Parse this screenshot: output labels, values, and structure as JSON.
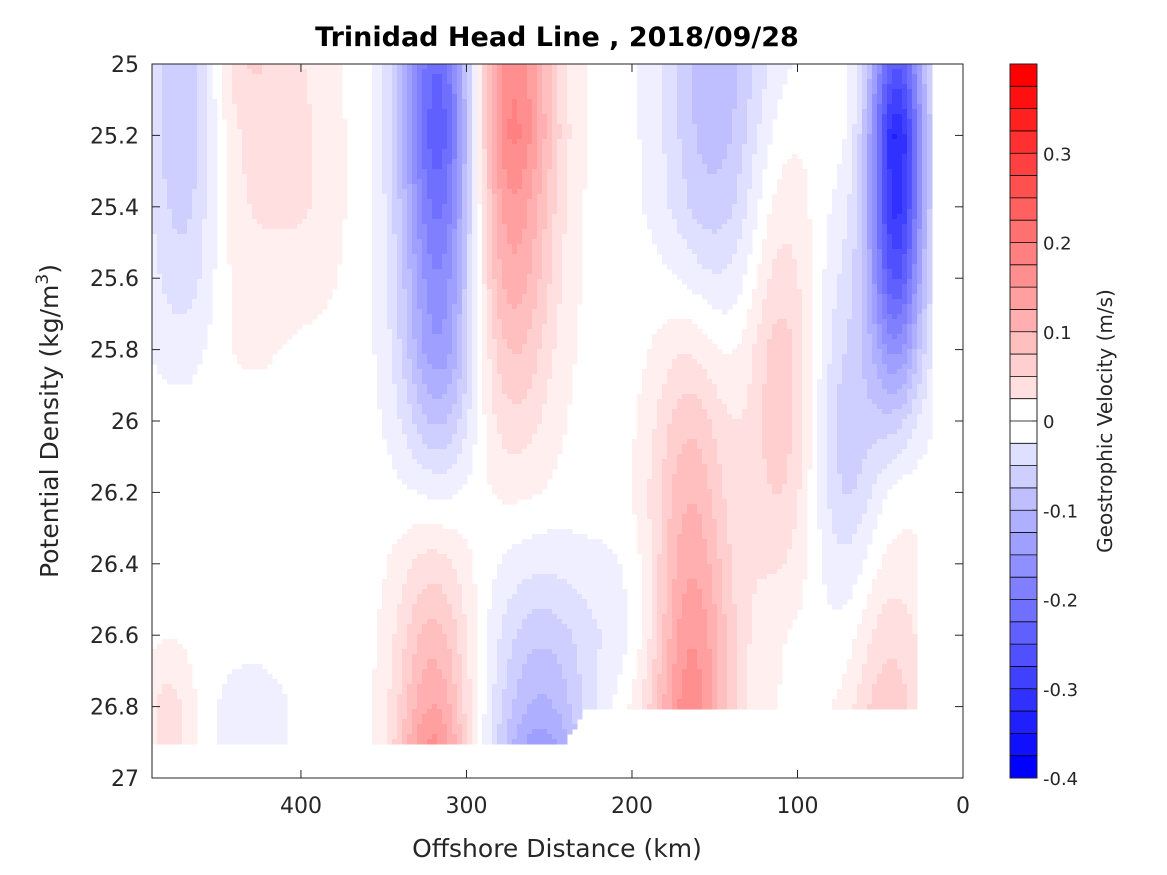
{
  "chart_data": {
    "type": "contour",
    "title": "Trinidad Head Line , 2018/09/28",
    "xlabel": "Offshore Distance (km)",
    "ylabel_main": "Potential Density (kg/m",
    "ylabel_sup": "3",
    "ylabel_close": ")",
    "colorbar_label": "Geostrophic Velocity (m/s)",
    "x_ticks": [
      "400",
      "300",
      "200",
      "100",
      "0"
    ],
    "y_ticks": [
      "25",
      "25.2",
      "25.4",
      "25.6",
      "25.8",
      "26",
      "26.2",
      "26.4",
      "26.6",
      "26.8",
      "27"
    ],
    "colorbar_ticks": [
      "0.3",
      "0.2",
      "0.1",
      "0",
      "-0.1",
      "-0.2",
      "-0.3",
      "-0.4"
    ],
    "xlim": [
      490,
      0
    ],
    "x_reversed": true,
    "ylim": [
      25,
      27
    ],
    "y_reversed": true,
    "clim": [
      -0.4,
      0.4
    ],
    "colormap": "blue-white-red",
    "negative_color": "#0000ff",
    "positive_color": "#ff0000",
    "y_levels": [
      25.0,
      25.2,
      25.4,
      25.6,
      25.8,
      26.0,
      26.2,
      26.4,
      26.6,
      26.8,
      26.9
    ],
    "features": [
      {
        "x": 470,
        "width": 30,
        "profile": [
          -0.1,
          -0.1,
          -0.08,
          -0.06,
          -0.03,
          0,
          0,
          0,
          0,
          0,
          0
        ]
      },
      {
        "x": 435,
        "width": 40,
        "profile": [
          0.07,
          0.05,
          0.04,
          0.03,
          0.02,
          0,
          0,
          0,
          0,
          0,
          0
        ]
      },
      {
        "x": 395,
        "width": 30,
        "profile": [
          0.02,
          0.03,
          0.03,
          0.02,
          0,
          0,
          0,
          0,
          0,
          0,
          0
        ]
      },
      {
        "x": 480,
        "width": 20,
        "profile": [
          0,
          0,
          0,
          0,
          0,
          0,
          0,
          0,
          0.01,
          0.05,
          0.05
        ]
      },
      {
        "x": 430,
        "width": 30,
        "profile": [
          0,
          0,
          0,
          0,
          0,
          0,
          0,
          0,
          0,
          -0.03,
          -0.03
        ]
      },
      {
        "x": 315,
        "width": 32,
        "profile": [
          -0.26,
          -0.28,
          -0.24,
          -0.2,
          -0.17,
          -0.1,
          -0.03,
          0,
          0,
          0,
          0
        ]
      },
      {
        "x": 275,
        "width": 36,
        "profile": [
          0.2,
          0.21,
          0.17,
          0.14,
          0.1,
          0.06,
          0.02,
          0,
          0,
          0,
          0
        ]
      },
      {
        "x": 320,
        "width": 30,
        "profile": [
          0,
          0,
          0,
          0,
          0,
          0,
          0.01,
          0.05,
          0.1,
          0.14,
          0.17
        ]
      },
      {
        "x": 255,
        "width": 40,
        "profile": [
          0,
          0,
          0,
          0,
          0,
          0,
          0,
          -0.03,
          -0.08,
          -0.12,
          -0.15
        ]
      },
      {
        "x": 200,
        "width": 40,
        "profile": [
          0,
          0,
          0,
          0,
          0,
          0,
          0,
          -0.02,
          -0.03,
          0,
          0
        ]
      },
      {
        "x": 150,
        "width": 40,
        "profile": [
          -0.11,
          -0.1,
          -0.08,
          -0.05,
          -0.02,
          0,
          0,
          0,
          0,
          0,
          0
        ]
      },
      {
        "x": 165,
        "width": 30,
        "profile": [
          0,
          0,
          0,
          0.02,
          0.05,
          0.08,
          0.1,
          0.12,
          0.14,
          0.16,
          0
        ]
      },
      {
        "x": 110,
        "width": 28,
        "profile": [
          0,
          0.02,
          0.04,
          0.06,
          0.08,
          0.08,
          0.06,
          0.03,
          0,
          0,
          0
        ]
      },
      {
        "x": 70,
        "width": 28,
        "profile": [
          0,
          0,
          -0.02,
          -0.04,
          -0.06,
          -0.08,
          -0.07,
          -0.04,
          -0.02,
          0,
          0
        ]
      },
      {
        "x": 40,
        "width": 22,
        "profile": [
          -0.26,
          -0.34,
          -0.32,
          -0.26,
          -0.16,
          -0.06,
          0,
          0,
          0,
          0,
          0
        ]
      },
      {
        "x": 45,
        "width": 30,
        "profile": [
          0,
          0,
          0,
          0,
          0,
          0,
          0.01,
          0.03,
          0.06,
          0.08,
          0.06
        ]
      },
      {
        "x": 150,
        "width": 60,
        "profile": [
          0,
          0,
          0,
          0,
          0,
          0,
          0.01,
          0.02,
          0.03,
          0.02,
          0
        ]
      }
    ]
  }
}
